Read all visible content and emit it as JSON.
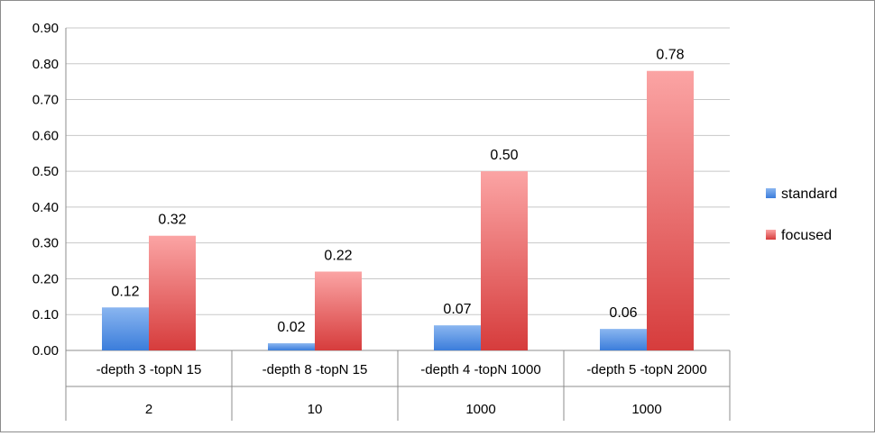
{
  "chart_data": {
    "type": "bar",
    "title": "",
    "xlabel": "",
    "ylabel": "",
    "ylim": [
      0,
      0.9
    ],
    "yticks": [
      "0.00",
      "0.10",
      "0.20",
      "0.30",
      "0.40",
      "0.50",
      "0.60",
      "0.70",
      "0.80",
      "0.90"
    ],
    "categories": [
      {
        "label": "-depth 3 -topN 15",
        "group": "2"
      },
      {
        "label": "-depth 8 -topN 15",
        "group": "10"
      },
      {
        "label": "-depth 4 -topN 1000",
        "group": "1000"
      },
      {
        "label": "-depth 5 -topN 2000",
        "group": "1000"
      }
    ],
    "series": [
      {
        "name": "standard",
        "values": [
          0.12,
          0.02,
          0.07,
          0.06
        ],
        "labels": [
          "0.12",
          "0.02",
          "0.07",
          "0.06"
        ],
        "color": "#4f8fe0"
      },
      {
        "name": "focused",
        "values": [
          0.32,
          0.22,
          0.5,
          0.78
        ],
        "labels": [
          "0.32",
          "0.22",
          "0.50",
          "0.78"
        ],
        "color": "#e05555"
      }
    ],
    "grid": true,
    "legend": "right"
  }
}
